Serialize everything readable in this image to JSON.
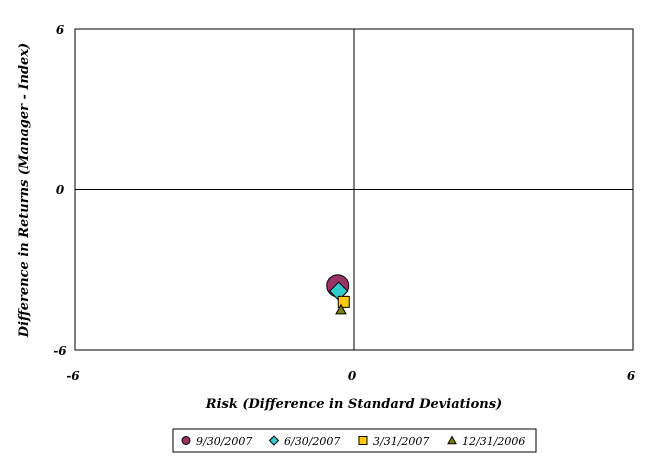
{
  "chart_data": {
    "type": "scatter",
    "xlabel": "Risk (Difference in Standard Deviations)",
    "ylabel": "Difference in Returns (Manager - Index)",
    "xlim": [
      -6,
      6
    ],
    "ylim": [
      -6,
      6
    ],
    "x_ticks": [
      "-6",
      "0",
      "6"
    ],
    "y_ticks": [
      "6",
      "0",
      "-6"
    ],
    "grid": false,
    "legend_position": "bottom",
    "series": [
      {
        "name": "9/30/2007",
        "marker": "circle",
        "color": "#993366",
        "x": -0.35,
        "y": -3.6
      },
      {
        "name": "6/30/2007",
        "marker": "diamond",
        "color": "#33CCCC",
        "x": -0.33,
        "y": -3.8
      },
      {
        "name": "3/31/2007",
        "marker": "square",
        "color": "#FFCC00",
        "x": -0.22,
        "y": -4.2
      },
      {
        "name": "12/31/2006",
        "marker": "triangle",
        "color": "#808000",
        "x": -0.28,
        "y": -4.5
      }
    ]
  }
}
